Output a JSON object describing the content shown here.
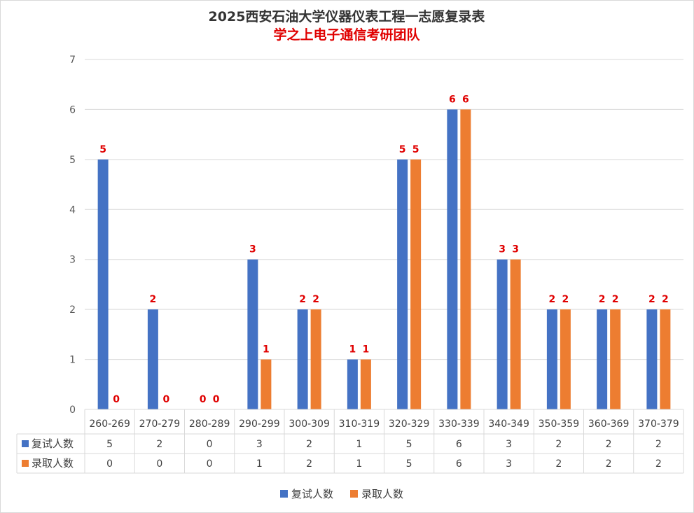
{
  "chart_data": {
    "type": "bar",
    "title": "2025西安石油大学仪器仪表工程一志愿复录表",
    "subtitle": "学之上电子通信考研团队",
    "categories": [
      "260-269",
      "270-279",
      "280-289",
      "290-299",
      "300-309",
      "310-319",
      "320-329",
      "330-339",
      "340-349",
      "350-359",
      "360-369",
      "370-379"
    ],
    "series": [
      {
        "name": "复试人数",
        "color": "#4472C4",
        "values": [
          5,
          2,
          0,
          3,
          2,
          1,
          5,
          6,
          3,
          2,
          2,
          2
        ]
      },
      {
        "name": "录取人数",
        "color": "#ED7D31",
        "values": [
          0,
          0,
          0,
          1,
          2,
          1,
          5,
          6,
          3,
          2,
          2,
          2
        ]
      }
    ],
    "ylim": [
      0,
      7
    ],
    "yticks": [
      0,
      1,
      2,
      3,
      4,
      5,
      6,
      7
    ],
    "grid": true,
    "data_table": true,
    "data_label_color": "#E00000",
    "legend": "bottom"
  }
}
